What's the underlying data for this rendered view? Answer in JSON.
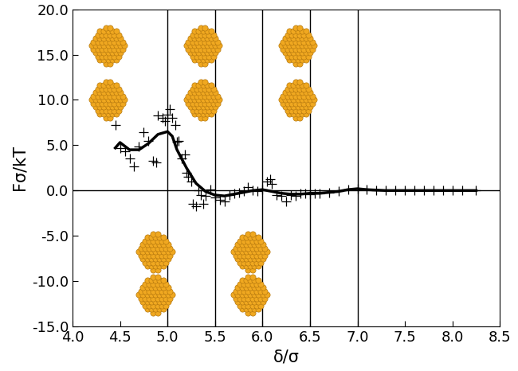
{
  "chart_data": {
    "type": "scatter",
    "x_label": "δ/σ",
    "y_label": "Fσ/kT",
    "xlim": [
      4.0,
      8.5
    ],
    "xticks": [
      {
        "value": 4.0,
        "label": "4.0"
      },
      {
        "value": 4.5,
        "label": "4.5"
      },
      {
        "value": 5.0,
        "label": "5.0"
      },
      {
        "value": 5.5,
        "label": "5.5"
      },
      {
        "value": 6.0,
        "label": "6.0"
      },
      {
        "value": 6.5,
        "label": "6.5"
      },
      {
        "value": 7.0,
        "label": "7.0"
      },
      {
        "value": 7.5,
        "label": "7.5"
      },
      {
        "value": 8.0,
        "label": "8.0"
      },
      {
        "value": 8.5,
        "label": "8.5"
      }
    ],
    "ylim": [
      -15.0,
      20.0
    ],
    "yticks": [
      {
        "value": -15.0,
        "label": "-15.0"
      },
      {
        "value": -10.0,
        "label": "-10.0"
      },
      {
        "value": -5.0,
        "label": "-5.0"
      },
      {
        "value": 0.0,
        "label": "0.0"
      },
      {
        "value": 5.0,
        "label": "5.0"
      },
      {
        "value": 10.0,
        "label": "10.0"
      },
      {
        "value": 15.0,
        "label": "15.0"
      },
      {
        "value": 20.0,
        "label": "20.0"
      }
    ],
    "grid": false,
    "vlines": [
      5.0,
      5.5,
      6.0,
      6.5,
      7.0
    ],
    "hlines": [
      0.0
    ],
    "series": [
      {
        "type": "scatter",
        "marker": "+",
        "color": "#000000",
        "x": [
          4.45,
          4.5,
          4.55,
          4.6,
          4.65,
          4.7,
          4.75,
          4.8,
          4.85,
          4.88,
          4.9,
          4.95,
          4.97,
          5.0,
          5.02,
          5.05,
          5.08,
          5.1,
          5.12,
          5.15,
          5.18,
          5.2,
          5.22,
          5.25,
          5.27,
          5.3,
          5.33,
          5.35,
          5.38,
          5.4,
          5.45,
          5.5,
          5.55,
          5.6,
          5.65,
          5.7,
          5.75,
          5.8,
          5.85,
          5.9,
          5.95,
          6.0,
          6.05,
          6.08,
          6.1,
          6.15,
          6.2,
          6.25,
          6.3,
          6.35,
          6.4,
          6.45,
          6.5,
          6.55,
          6.6,
          6.7,
          6.8,
          6.9,
          7.0,
          7.1,
          7.2,
          7.3,
          7.4,
          7.5,
          7.6,
          7.7,
          7.8,
          7.9,
          8.0,
          8.1,
          8.25
        ],
        "values": [
          7.2,
          4.7,
          4.3,
          3.5,
          2.7,
          4.9,
          6.4,
          5.5,
          3.3,
          3.1,
          8.3,
          8.0,
          7.7,
          8.4,
          9.0,
          8.0,
          7.2,
          5.4,
          5.5,
          3.5,
          4.0,
          2.0,
          1.5,
          1.0,
          -1.5,
          -1.7,
          0.0,
          -0.5,
          -1.5,
          -0.6,
          0.1,
          -0.8,
          -1.0,
          -1.2,
          -0.5,
          -0.3,
          -0.2,
          -0.1,
          0.4,
          0.0,
          -0.1,
          0.1,
          1.0,
          1.3,
          0.7,
          -0.5,
          -0.6,
          -1.2,
          -0.5,
          -0.6,
          -0.3,
          -0.3,
          -0.4,
          -0.3,
          -0.3,
          -0.2,
          -0.1,
          0.1,
          0.2,
          0.1,
          0.0,
          0.0,
          0.0,
          0.0,
          0.0,
          0.0,
          0.0,
          0.0,
          0.0,
          0.0,
          0.0
        ]
      },
      {
        "type": "line",
        "line_style": "solid",
        "color": "#000000",
        "x": [
          4.45,
          4.5,
          4.6,
          4.7,
          4.8,
          4.9,
          5.0,
          5.05,
          5.1,
          5.2,
          5.3,
          5.4,
          5.5,
          5.6,
          5.7,
          5.8,
          5.9,
          6.0,
          6.1,
          6.2,
          6.3,
          6.4,
          6.5,
          6.6,
          6.7,
          6.8,
          6.9,
          7.0,
          7.1,
          7.3,
          7.5,
          8.0,
          8.25
        ],
        "values": [
          4.7,
          5.3,
          4.5,
          4.5,
          5.2,
          6.2,
          6.5,
          6.0,
          4.5,
          2.5,
          0.8,
          -0.1,
          -0.5,
          -0.6,
          -0.4,
          -0.2,
          0.0,
          0.1,
          -0.1,
          -0.3,
          -0.4,
          -0.4,
          -0.3,
          -0.3,
          -0.2,
          -0.1,
          0.1,
          0.2,
          0.1,
          0.0,
          0.0,
          0.0,
          0.0
        ]
      }
    ]
  }
}
